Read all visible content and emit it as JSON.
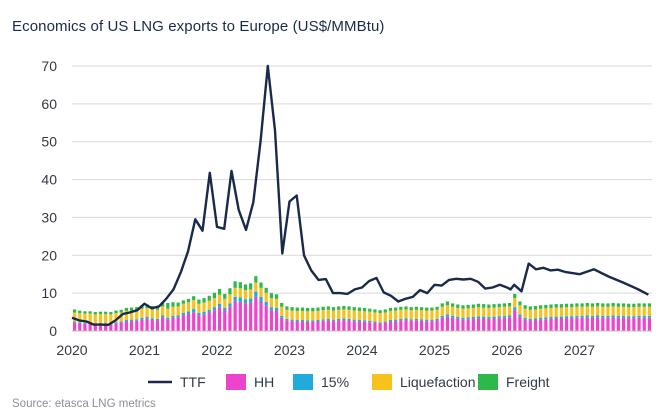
{
  "chart_data": {
    "type": "bar",
    "title": "Economics of US LNG exports to Europe (US$/MMBtu)",
    "source": "Source: etasca LNG metrics",
    "xlabel": "",
    "ylabel": "",
    "ylim": [
      0,
      70
    ],
    "yticks": [
      0,
      10,
      20,
      30,
      40,
      50,
      60,
      70
    ],
    "xlim": [
      2020.0,
      2028.0
    ],
    "xticks": [
      "2020",
      "2021",
      "2022",
      "2023",
      "2024",
      "2025",
      "2026",
      "2027"
    ],
    "grid": true,
    "legend_position": "bottom",
    "stacked": true,
    "series": [
      {
        "name": "TTF",
        "type": "line",
        "color": "#1b2a4a",
        "x": [
          2020.0,
          2020.1,
          2020.2,
          2020.3,
          2020.4,
          2020.5,
          2020.6,
          2020.7,
          2020.8,
          2020.9,
          2021.0,
          2021.1,
          2021.2,
          2021.3,
          2021.4,
          2021.5,
          2021.6,
          2021.7,
          2021.8,
          2021.9,
          2022.0,
          2022.1,
          2022.2,
          2022.3,
          2022.4,
          2022.5,
          2022.6,
          2022.7,
          2022.8,
          2022.9,
          2023.0,
          2023.1,
          2023.2,
          2023.3,
          2023.4,
          2023.5,
          2023.6,
          2023.7,
          2023.8,
          2023.9,
          2024.0,
          2024.1,
          2024.2,
          2024.3,
          2024.4,
          2024.5,
          2024.6,
          2024.7,
          2024.8,
          2024.9,
          2025.0,
          2025.1,
          2025.2,
          2025.3,
          2025.4,
          2025.5,
          2025.6,
          2025.7,
          2025.8,
          2025.9,
          2026.0,
          2026.05,
          2026.1,
          2026.2,
          2026.3,
          2026.4,
          2026.5,
          2026.6,
          2026.7,
          2026.8,
          2026.9,
          2027.0,
          2027.2,
          2027.4,
          2027.6,
          2027.8,
          2027.95
        ],
        "values": [
          3.5,
          2.8,
          2.5,
          1.7,
          1.7,
          1.6,
          2.8,
          4.5,
          4.9,
          5.5,
          7.2,
          6.0,
          6.5,
          8.5,
          11.0,
          15.5,
          21.0,
          29.5,
          26.5,
          41.8,
          27.5,
          27.0,
          42.3,
          32.0,
          26.7,
          34.0,
          50.0,
          70.0,
          53.0,
          20.5,
          34.2,
          35.8,
          20.0,
          16.0,
          13.5,
          13.7,
          10.0,
          10.0,
          9.8,
          11.0,
          11.5,
          13.2,
          14.0,
          10.2,
          9.3,
          7.8,
          8.5,
          9.0,
          10.8,
          10.0,
          12.2,
          12.0,
          13.5,
          13.8,
          13.6,
          13.8,
          13.0,
          11.2,
          11.5,
          12.2,
          11.5,
          11.0,
          12.2,
          10.5,
          17.8,
          16.3,
          16.7,
          16.0,
          16.2,
          15.6,
          15.3,
          15.0,
          16.3,
          14.4,
          12.8,
          11.1,
          9.6
        ]
      },
      {
        "name": "HH",
        "color": "#ee44cc",
        "values": [
          2.2,
          2.0,
          1.9,
          1.9,
          1.7,
          1.8,
          1.8,
          1.7,
          2.0,
          2.2,
          2.5,
          2.6,
          2.7,
          3.0,
          3.2,
          2.9,
          2.8,
          3.6,
          3.0,
          3.5,
          3.6,
          4.2,
          4.5,
          5.0,
          4.2,
          4.4,
          4.9,
          5.5,
          6.3,
          5.3,
          6.4,
          7.8,
          7.7,
          7.3,
          7.5,
          9.0,
          7.8,
          6.7,
          5.5,
          5.3,
          3.5,
          2.8,
          2.6,
          2.5,
          2.5,
          2.4,
          2.4,
          2.5,
          2.7,
          2.8,
          2.6,
          2.8,
          2.9,
          2.8,
          2.6,
          2.5,
          2.4,
          2.3,
          2.2,
          2.0,
          2.2,
          2.5,
          2.6,
          2.8,
          2.9,
          2.7,
          2.8,
          2.7,
          2.6,
          2.6,
          2.8,
          3.5,
          3.8,
          3.5,
          3.2,
          3.0,
          3.1,
          3.2,
          3.4,
          3.3,
          3.2,
          3.3,
          3.4,
          3.5,
          3.6,
          5.5,
          3.8,
          3.0,
          2.8,
          2.9,
          3.0,
          3.1,
          3.2,
          3.3,
          3.3,
          3.4,
          3.4,
          3.5,
          3.5,
          3.6,
          3.5,
          3.6,
          3.5,
          3.5,
          3.6,
          3.5,
          3.5,
          3.4,
          3.4,
          3.5,
          3.5,
          3.5
        ]
      },
      {
        "name": "15%",
        "color": "#22aadd",
        "values": [
          0.3,
          0.3,
          0.3,
          0.3,
          0.3,
          0.3,
          0.3,
          0.3,
          0.3,
          0.3,
          0.4,
          0.4,
          0.4,
          0.5,
          0.5,
          0.4,
          0.4,
          0.5,
          0.5,
          0.5,
          0.5,
          0.6,
          0.7,
          0.8,
          0.6,
          0.7,
          0.7,
          0.8,
          0.9,
          0.8,
          0.9,
          1.2,
          1.2,
          1.1,
          1.1,
          1.4,
          1.2,
          1.0,
          0.8,
          0.8,
          0.5,
          0.4,
          0.4,
          0.4,
          0.4,
          0.4,
          0.4,
          0.4,
          0.4,
          0.4,
          0.4,
          0.4,
          0.4,
          0.4,
          0.4,
          0.4,
          0.4,
          0.4,
          0.3,
          0.3,
          0.3,
          0.4,
          0.4,
          0.4,
          0.4,
          0.4,
          0.4,
          0.4,
          0.4,
          0.4,
          0.4,
          0.5,
          0.6,
          0.5,
          0.5,
          0.5,
          0.5,
          0.5,
          0.5,
          0.5,
          0.5,
          0.5,
          0.5,
          0.5,
          0.5,
          0.8,
          0.6,
          0.5,
          0.4,
          0.4,
          0.5,
          0.5,
          0.5,
          0.5,
          0.5,
          0.5,
          0.5,
          0.5,
          0.5,
          0.5,
          0.5,
          0.5,
          0.5,
          0.5,
          0.5,
          0.5,
          0.5,
          0.5,
          0.5,
          0.5,
          0.5,
          0.5
        ]
      },
      {
        "name": "Liquefaction",
        "color": "#f7c21b",
        "values": [
          2.4,
          2.4,
          2.4,
          2.4,
          2.4,
          2.4,
          2.4,
          2.4,
          2.4,
          2.4,
          2.4,
          2.4,
          2.4,
          2.4,
          2.4,
          2.4,
          2.4,
          2.4,
          2.4,
          2.4,
          2.4,
          2.4,
          2.4,
          2.4,
          2.4,
          2.4,
          2.4,
          2.4,
          2.4,
          2.4,
          2.4,
          2.4,
          2.4,
          2.4,
          2.4,
          2.4,
          2.4,
          2.4,
          2.4,
          2.4,
          2.4,
          2.4,
          2.4,
          2.4,
          2.4,
          2.4,
          2.4,
          2.4,
          2.4,
          2.4,
          2.4,
          2.4,
          2.4,
          2.4,
          2.4,
          2.4,
          2.4,
          2.4,
          2.4,
          2.4,
          2.4,
          2.4,
          2.4,
          2.4,
          2.4,
          2.4,
          2.4,
          2.4,
          2.4,
          2.4,
          2.4,
          2.4,
          2.4,
          2.4,
          2.4,
          2.4,
          2.4,
          2.4,
          2.4,
          2.4,
          2.4,
          2.4,
          2.4,
          2.4,
          2.4,
          2.4,
          2.4,
          2.4,
          2.4,
          2.4,
          2.4,
          2.4,
          2.4,
          2.4,
          2.4,
          2.4,
          2.4,
          2.4,
          2.4,
          2.4,
          2.4,
          2.4,
          2.4,
          2.4,
          2.4,
          2.4,
          2.4,
          2.4,
          2.4,
          2.4,
          2.4,
          2.4
        ]
      },
      {
        "name": "Freight",
        "color": "#2db84a",
        "values": [
          0.8,
          0.7,
          0.6,
          0.6,
          0.6,
          0.6,
          0.6,
          0.6,
          0.7,
          0.7,
          0.8,
          0.8,
          0.8,
          0.9,
          0.9,
          0.9,
          1.0,
          1.1,
          1.5,
          1.2,
          1.0,
          0.9,
          0.9,
          1.0,
          1.1,
          1.2,
          1.3,
          1.4,
          1.5,
          1.3,
          1.6,
          1.7,
          1.6,
          1.5,
          1.6,
          1.7,
          1.4,
          1.3,
          1.3,
          1.2,
          1.0,
          0.9,
          0.9,
          0.9,
          0.9,
          0.9,
          0.9,
          0.9,
          0.9,
          0.9,
          0.9,
          0.9,
          0.9,
          0.9,
          0.9,
          0.9,
          0.9,
          0.8,
          0.8,
          0.8,
          0.8,
          0.8,
          0.8,
          0.8,
          0.8,
          0.8,
          0.8,
          0.8,
          0.8,
          0.8,
          0.8,
          0.9,
          1.0,
          0.9,
          0.9,
          0.9,
          0.9,
          0.9,
          0.9,
          0.9,
          0.9,
          0.9,
          0.9,
          0.9,
          0.9,
          1.1,
          1.0,
          0.9,
          0.9,
          0.9,
          0.9,
          0.9,
          0.9,
          0.9,
          0.9,
          0.9,
          0.9,
          0.9,
          0.9,
          0.9,
          0.9,
          0.9,
          0.9,
          0.9,
          0.9,
          0.9,
          0.9,
          0.9,
          0.9,
          0.9,
          0.9,
          0.9
        ]
      }
    ]
  }
}
